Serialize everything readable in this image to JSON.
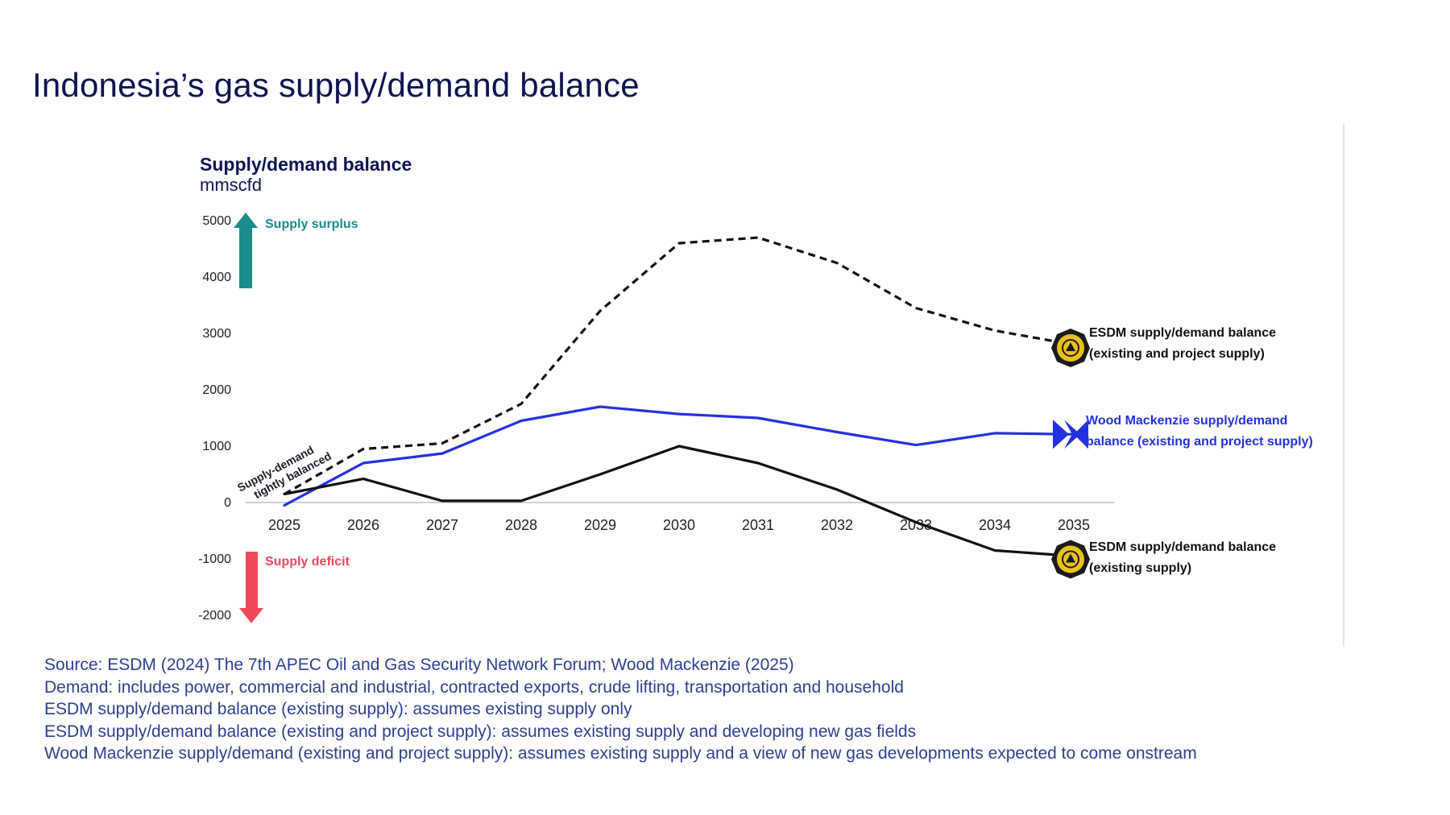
{
  "page": {
    "title": "Indonesia’s gas supply/demand balance"
  },
  "chart_data": {
    "type": "line",
    "title": "Supply/demand balance",
    "ylabel": "mmscfd",
    "x": [
      "2025",
      "2026",
      "2027",
      "2028",
      "2029",
      "2030",
      "2031",
      "2032",
      "2033",
      "2034",
      "2035"
    ],
    "ylim": [
      -2000,
      5000
    ],
    "yticks": [
      5000,
      4000,
      3000,
      2000,
      1000,
      0,
      -1000,
      -2000
    ],
    "ytick_labels": [
      "5000",
      "4000",
      "3000",
      "2000",
      "1000",
      "0",
      "-1000",
      "-2000"
    ],
    "grid": false,
    "series": [
      {
        "name": "ESDM supply/demand balance (existing and project supply)",
        "label_lines": [
          "ESDM supply/demand balance",
          "(existing and project supply)"
        ],
        "values": [
          150,
          950,
          1050,
          1750,
          3400,
          4600,
          4700,
          4250,
          3450,
          3050,
          2800
        ],
        "color": "#111111",
        "style": "dashed",
        "icon": "esdm-emblem-icon"
      },
      {
        "name": "Wood Mackenzie supply/demand balance (existing and project supply)",
        "label_lines": [
          "Wood Mackenzie supply/demand",
          "balance (existing and project supply)"
        ],
        "values": [
          -50,
          700,
          870,
          1450,
          1700,
          1570,
          1500,
          1250,
          1020,
          1230,
          1210
        ],
        "color": "#2431e0",
        "style": "solid",
        "icon": "wood-mackenzie-logo-icon"
      },
      {
        "name": "ESDM supply/demand balance (existing supply)",
        "label_lines": [
          "ESDM supply/demand balance",
          "(existing supply)"
        ],
        "values": [
          150,
          420,
          30,
          30,
          500,
          1000,
          700,
          230,
          -350,
          -850,
          -950
        ],
        "color": "#111111",
        "style": "solid",
        "icon": "esdm-emblem-icon"
      }
    ],
    "annotations": {
      "surplus": "Supply surplus",
      "deficit": "Supply deficit",
      "balanced": [
        "Supply-demand",
        "tightly balanced"
      ]
    },
    "colors": {
      "surplus_arrow": "#1a8c8a",
      "deficit_arrow": "#f0485a",
      "emblem_gold": "#e8c21a"
    }
  },
  "notes": [
    "Source: ESDM (2024) The 7th APEC Oil and Gas Security Network Forum; Wood Mackenzie (2025)",
    "Demand: includes power, commercial and industrial, contracted exports, crude lifting, transportation and household",
    "ESDM  supply/demand balance (existing supply): assumes existing supply only",
    "ESDM supply/demand balance (existing and project supply): assumes existing supply and developing new gas fields",
    "Wood Mackenzie supply/demand (existing and project supply): assumes existing supply and a view of new gas developments expected to come onstream"
  ]
}
